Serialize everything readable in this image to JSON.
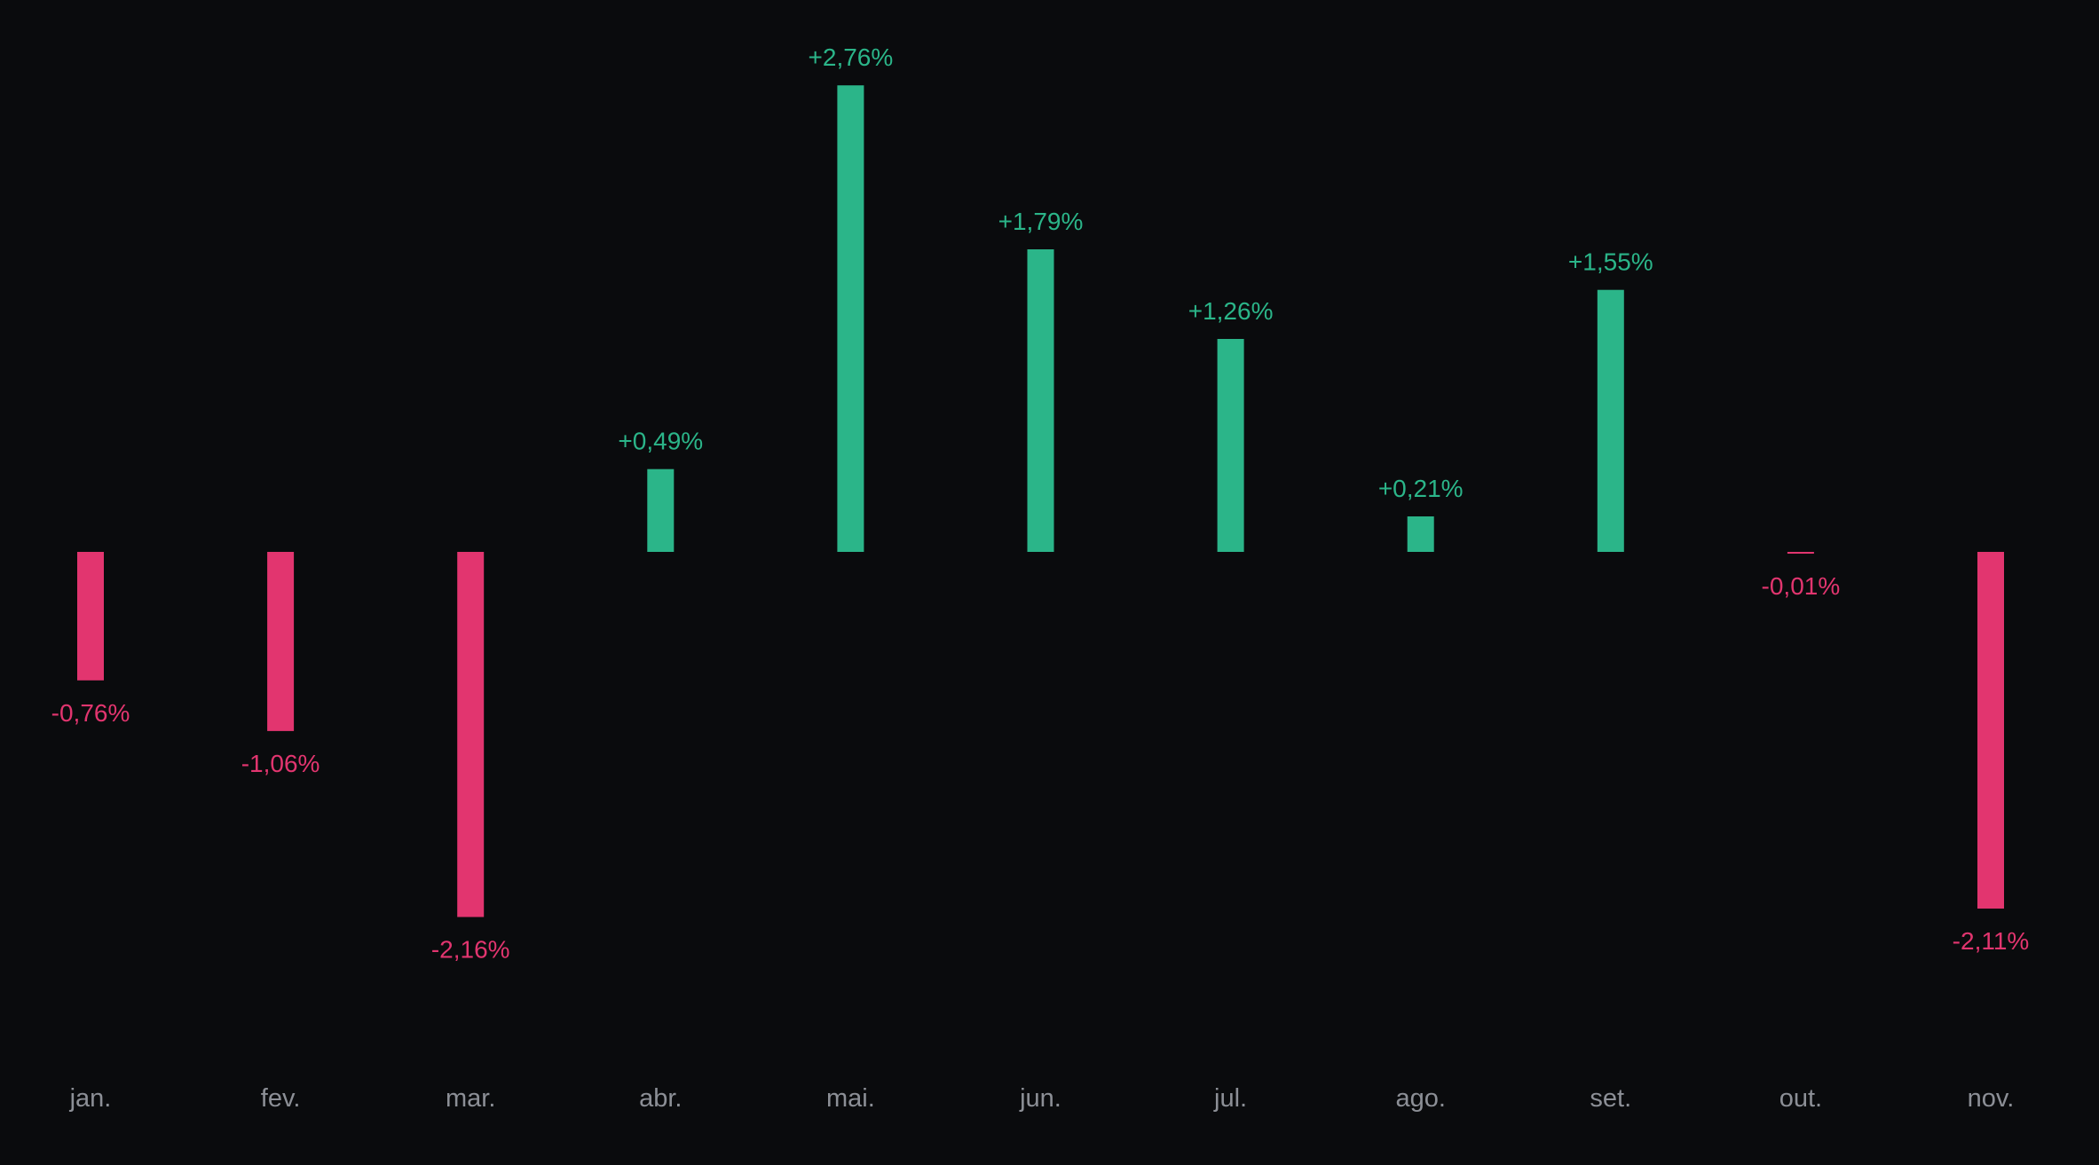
{
  "chart_data": {
    "type": "bar",
    "title": "",
    "xlabel": "",
    "ylabel": "",
    "categories": [
      "jan.",
      "fev.",
      "mar.",
      "abr.",
      "mai.",
      "jun.",
      "jul.",
      "ago.",
      "set.",
      "out.",
      "nov."
    ],
    "values": [
      -0.76,
      -1.06,
      -2.16,
      0.49,
      2.76,
      1.79,
      1.26,
      0.21,
      1.55,
      -0.01,
      -2.11
    ],
    "value_labels": [
      "-0,76%",
      "-1,06%",
      "-2,16%",
      "+0,49%",
      "+2,76%",
      "+1,79%",
      "+1,26%",
      "+0,21%",
      "+1,55%",
      "-0,01%",
      "-2,11%"
    ],
    "grid": false,
    "legend": "none",
    "colors": {
      "background": "#0a0b0d",
      "positive": "#2bb589",
      "negative": "#e2356f",
      "month_text": "#8c8f96"
    }
  }
}
